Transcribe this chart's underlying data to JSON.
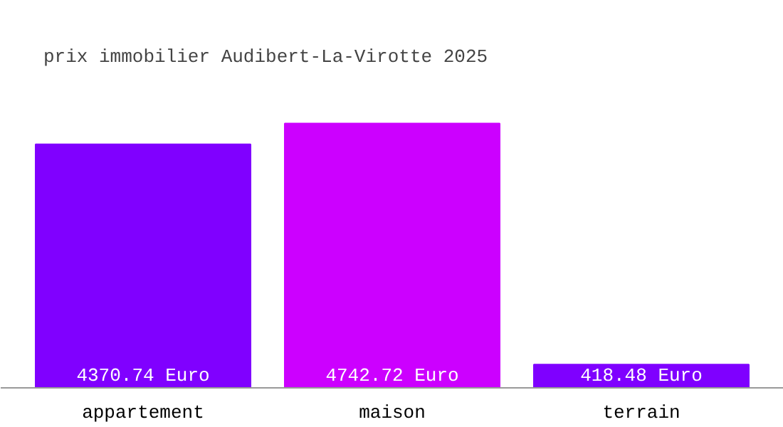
{
  "chart_data": {
    "type": "bar",
    "title": "prix immobilier Audibert-La-Virotte 2025",
    "categories": [
      "appartement",
      "maison",
      "terrain"
    ],
    "values": [
      4370.74,
      4742.72,
      418.48
    ],
    "colors": [
      "#8000ff",
      "#cc00ff",
      "#7f00ff"
    ],
    "value_labels": [
      "4370.74 Euro",
      "4742.72 Euro",
      "418.48 Euro"
    ]
  }
}
